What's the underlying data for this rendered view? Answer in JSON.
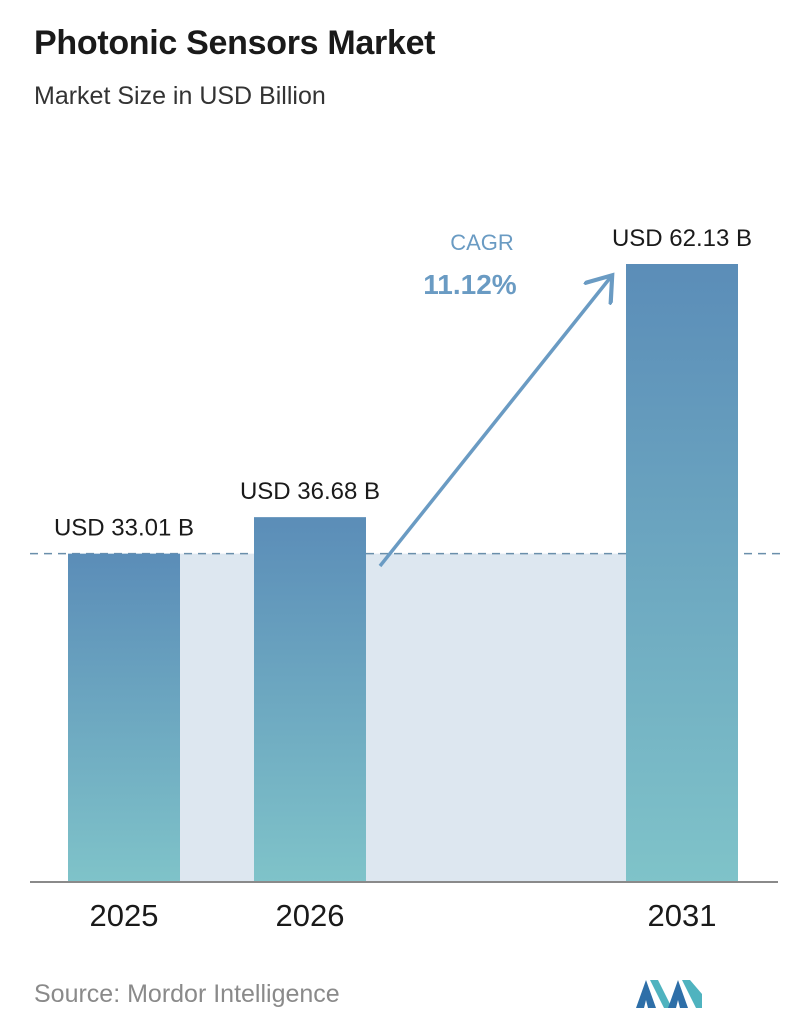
{
  "header": {
    "title": "Photonic Sensors Market",
    "subtitle": "Market Size in USD Billion"
  },
  "chart_data": {
    "type": "bar",
    "categories": [
      "2025",
      "2026",
      "2031"
    ],
    "values": [
      33.01,
      36.68,
      62.13
    ],
    "value_labels": [
      "USD 33.01 B",
      "USD 36.68 B",
      "USD 62.13 B"
    ],
    "xlabel": "",
    "ylabel": "",
    "ylim": [
      0,
      62.13
    ],
    "grid": false,
    "annotation": {
      "label": "CAGR",
      "value": "11.12%"
    },
    "colors": {
      "bar_top": "#5b8db8",
      "bar_bottom": "#7fc3c9",
      "band": "#dde7f0",
      "arrow": "#6a9bc3",
      "cagr_text": "#6a9bc3",
      "baseline": "#8a8a8a",
      "dashed_line": "#6a8fab"
    }
  },
  "footer": {
    "source": "Source:  Mordor Intelligence",
    "logo_icon": "mordor-intelligence-logo-icon"
  }
}
